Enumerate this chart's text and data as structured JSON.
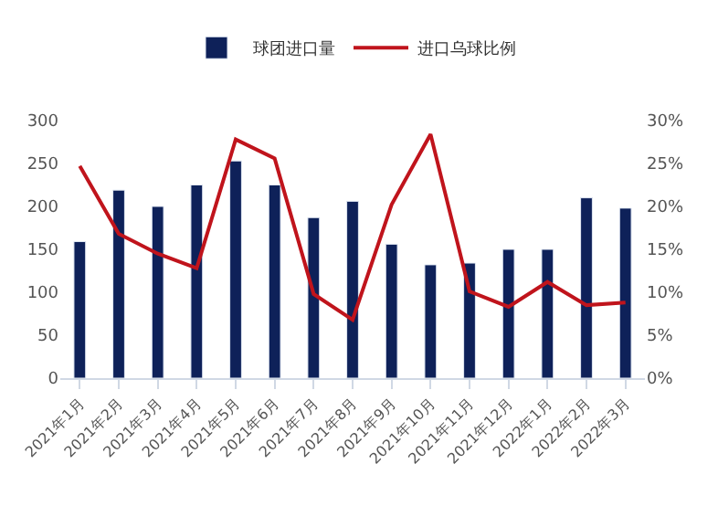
{
  "chart_data": {
    "type": "bar",
    "categories": [
      "2021年1月",
      "2021年2月",
      "2021年3月",
      "2021年4月",
      "2021年5月",
      "2021年6月",
      "2021年7月",
      "2021年8月",
      "2021年9月",
      "2021年10月",
      "2021年11月",
      "2021年12月",
      "2022年1月",
      "2022年2月",
      "2022年3月"
    ],
    "series": [
      {
        "name": "球团进口量",
        "color": "#0e2159",
        "values": [
          159,
          219,
          200,
          225,
          253,
          225,
          187,
          206,
          156,
          132,
          134,
          150,
          150,
          210,
          198
        ]
      },
      {
        "name": "进口乌球比例",
        "type": "line",
        "axis": "y2",
        "color": "#c0141c",
        "values": [
          24.7,
          16.8,
          14.5,
          12.8,
          27.8,
          25.6,
          9.8,
          6.8,
          20.2,
          28.4,
          10.1,
          8.3,
          11.2,
          8.5,
          8.8
        ]
      }
    ],
    "ylim": [
      0,
      300
    ],
    "yticks": [
      0,
      50,
      100,
      150,
      200,
      250,
      300
    ],
    "y2lim": [
      0,
      30
    ],
    "y2ticks": [
      {
        "value": 0,
        "label": "0%"
      },
      {
        "value": 5,
        "label": "5%"
      },
      {
        "value": 10,
        "label": "10%"
      },
      {
        "value": 15,
        "label": "15%"
      },
      {
        "value": 20,
        "label": "20%"
      },
      {
        "value": 25,
        "label": "25%"
      },
      {
        "value": 30,
        "label": "30%"
      }
    ],
    "legend": "top"
  }
}
